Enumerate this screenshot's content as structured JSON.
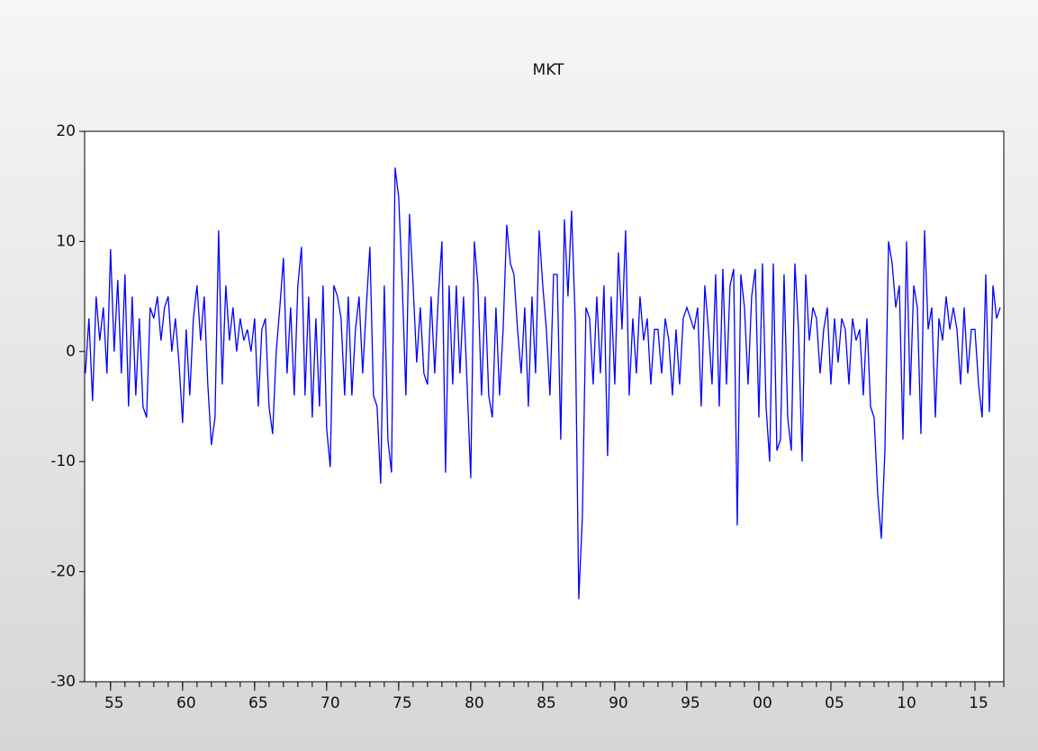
{
  "chart_data": {
    "type": "line",
    "title": "MKT",
    "color": "#0000ff",
    "x": [
      1953.25,
      1953.5,
      1953.75,
      1954,
      1954.25,
      1954.5,
      1954.75,
      1955,
      1955.25,
      1955.5,
      1955.75,
      1956,
      1956.25,
      1956.5,
      1956.75,
      1957,
      1957.25,
      1957.5,
      1957.75,
      1958,
      1958.25,
      1958.5,
      1958.75,
      1959,
      1959.25,
      1959.5,
      1959.75,
      1960,
      1960.25,
      1960.5,
      1960.75,
      1961,
      1961.25,
      1961.5,
      1961.75,
      1962,
      1962.25,
      1962.5,
      1962.75,
      1963,
      1963.25,
      1963.5,
      1963.75,
      1964,
      1964.25,
      1964.5,
      1964.75,
      1965,
      1965.25,
      1965.5,
      1965.75,
      1966,
      1966.25,
      1966.5,
      1966.75,
      1967,
      1967.25,
      1967.5,
      1967.75,
      1968,
      1968.25,
      1968.5,
      1968.75,
      1969,
      1969.25,
      1969.5,
      1969.75,
      1970,
      1970.25,
      1970.5,
      1970.75,
      1971,
      1971.25,
      1971.5,
      1971.75,
      1972,
      1972.25,
      1972.5,
      1972.75,
      1973,
      1973.25,
      1973.5,
      1973.75,
      1974,
      1974.25,
      1974.5,
      1974.75,
      1975,
      1975.25,
      1975.5,
      1975.75,
      1976,
      1976.25,
      1976.5,
      1976.75,
      1977,
      1977.25,
      1977.5,
      1977.75,
      1978,
      1978.25,
      1978.5,
      1978.75,
      1979,
      1979.25,
      1979.5,
      1979.75,
      1980,
      1980.25,
      1980.5,
      1980.75,
      1981,
      1981.25,
      1981.5,
      1981.75,
      1982,
      1982.25,
      1982.5,
      1982.75,
      1983,
      1983.25,
      1983.5,
      1983.75,
      1984,
      1984.25,
      1984.5,
      1984.75,
      1985,
      1985.25,
      1985.5,
      1985.75,
      1986,
      1986.25,
      1986.5,
      1986.75,
      1987,
      1987.25,
      1987.5,
      1987.75,
      1988,
      1988.25,
      1988.5,
      1988.75,
      1989,
      1989.25,
      1989.5,
      1989.75,
      1990,
      1990.25,
      1990.5,
      1990.75,
      1991,
      1991.25,
      1991.5,
      1991.75,
      1992,
      1992.25,
      1992.5,
      1992.75,
      1993,
      1993.25,
      1993.5,
      1993.75,
      1994,
      1994.25,
      1994.5,
      1994.75,
      1995,
      1995.25,
      1995.5,
      1995.75,
      1996,
      1996.25,
      1996.5,
      1996.75,
      1997,
      1997.25,
      1997.5,
      1997.75,
      1998,
      1998.25,
      1998.5,
      1998.75,
      1999,
      1999.25,
      1999.5,
      1999.75,
      2000,
      2000.25,
      2000.5,
      2000.75,
      2001,
      2001.25,
      2001.5,
      2001.75,
      2002,
      2002.25,
      2002.5,
      2002.75,
      2003,
      2003.25,
      2003.5,
      2003.75,
      2004,
      2004.25,
      2004.5,
      2004.75,
      2005,
      2005.25,
      2005.5,
      2005.75,
      2006,
      2006.25,
      2006.5,
      2006.75,
      2007,
      2007.25,
      2007.5,
      2007.75,
      2008,
      2008.25,
      2008.5,
      2008.75,
      2009,
      2009.25,
      2009.5,
      2009.75,
      2010,
      2010.25,
      2010.5,
      2010.75,
      2011,
      2011.25,
      2011.5,
      2011.75,
      2012,
      2012.25,
      2012.5,
      2012.75,
      2013,
      2013.25,
      2013.5,
      2013.75,
      2014,
      2014.25,
      2014.5,
      2014.75,
      2015,
      2015.25,
      2015.5,
      2015.75,
      2016,
      2016.25,
      2016.5,
      2016.75
    ],
    "values": [
      -2,
      3,
      -4.5,
      5,
      1,
      4,
      -2,
      9.3,
      0,
      6.5,
      -2,
      7,
      -5,
      5,
      -4,
      3,
      -5,
      -6,
      4,
      3,
      5,
      1,
      4,
      5,
      0,
      3,
      -1,
      -6.5,
      2,
      -4,
      3,
      6,
      1,
      5,
      -3,
      -8.5,
      -6,
      11,
      -3,
      6,
      1,
      4,
      0,
      3,
      1,
      2,
      0,
      3,
      -5,
      2,
      3,
      -5,
      -7.5,
      0,
      4,
      8.5,
      -2,
      4,
      -4,
      6,
      9.5,
      -4,
      5,
      -6,
      3,
      -5,
      6,
      -7,
      -10.5,
      6,
      5,
      3,
      -4,
      5,
      -4,
      2,
      5,
      -2,
      4,
      9.5,
      -4,
      -5,
      -12,
      6,
      -8,
      -11,
      16.7,
      14,
      6,
      -4,
      12.5,
      6,
      -1,
      4,
      -2,
      -3,
      5,
      -2,
      5,
      10,
      -11,
      6,
      -3,
      6,
      -2,
      5,
      -3,
      -11.5,
      10,
      6,
      -4,
      5,
      -4,
      -6,
      4,
      -4,
      2,
      11.5,
      8,
      7,
      2,
      -2,
      4,
      -5,
      5,
      -2,
      11,
      6,
      2,
      -4,
      7,
      7,
      -8,
      12,
      5,
      12.8,
      3,
      -22.5,
      -15,
      4,
      3,
      -3,
      5,
      -2,
      6,
      -9.5,
      5,
      -3,
      9,
      2,
      11,
      -4,
      3,
      -2,
      5,
      1,
      3,
      -3,
      2,
      2,
      -2,
      3,
      1,
      -4,
      2,
      -3,
      3,
      4,
      3,
      2,
      4,
      -5,
      6,
      2,
      -3,
      7,
      -5,
      7.5,
      -3,
      6,
      7.5,
      -15.8,
      7,
      4,
      -3,
      5,
      7.5,
      -6,
      8,
      -5,
      -10,
      8,
      -9,
      -8,
      7,
      -6,
      -9,
      8,
      2,
      -10,
      7,
      1,
      4,
      3,
      -2,
      2,
      4,
      -3,
      3,
      -1,
      3,
      2,
      -3,
      3,
      1,
      2,
      -4,
      3,
      -5,
      -6,
      -13,
      -17,
      -9,
      10,
      8,
      4,
      6,
      -8,
      10,
      -4,
      6,
      4,
      -7.5,
      11,
      2,
      4,
      -6,
      3,
      1,
      5,
      2,
      4,
      2,
      -3,
      4,
      -2,
      2,
      2,
      -3,
      -6,
      7,
      -5.5,
      6,
      3,
      4
    ],
    "xlim": [
      1953.2,
      2017.0
    ],
    "ylim": [
      -30,
      20
    ],
    "yticks": [
      -30,
      -20,
      -10,
      0,
      10,
      20
    ],
    "xticks": [
      {
        "value": 1955,
        "label": "55"
      },
      {
        "value": 1960,
        "label": "60"
      },
      {
        "value": 1965,
        "label": "65"
      },
      {
        "value": 1970,
        "label": "70"
      },
      {
        "value": 1975,
        "label": "75"
      },
      {
        "value": 1980,
        "label": "80"
      },
      {
        "value": 1985,
        "label": "85"
      },
      {
        "value": 1990,
        "label": "90"
      },
      {
        "value": 1995,
        "label": "95"
      },
      {
        "value": 2000,
        "label": "00"
      },
      {
        "value": 2005,
        "label": "05"
      },
      {
        "value": 2010,
        "label": "10"
      },
      {
        "value": 2015,
        "label": "15"
      }
    ]
  }
}
